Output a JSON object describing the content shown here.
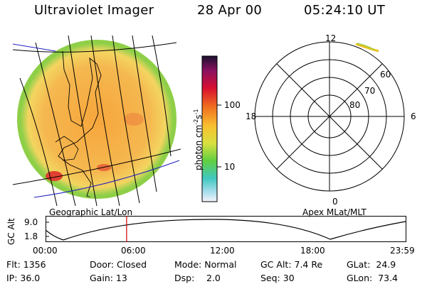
{
  "header": {
    "instrument": "Ultraviolet Imager",
    "date": "28 Apr 00",
    "time": "05:24:10 UT"
  },
  "colorbar": {
    "unit_label": "photon cm",
    "unit_sup1": "-2",
    "unit_mid": "s",
    "unit_sup2": "-1",
    "tick_100": "100",
    "tick_10": "10"
  },
  "polar_plot": {
    "mlt_12": "12",
    "mlt_18": "18",
    "mlt_6": "6",
    "mlt_0": "0",
    "lat_60": "60",
    "lat_70": "70",
    "lat_80": "80"
  },
  "panel_labels": {
    "left": "Geographic Lat/Lon",
    "right": "Apex MLat/MLT"
  },
  "altitude_plot": {
    "ylabel": "GC Alt",
    "ytick_high": "9.0",
    "ytick_low": "1.8",
    "x_ticks": [
      "00:00",
      "06:00",
      "12:00",
      "18:00",
      "23:59"
    ],
    "current_time_hours": 5.403
  },
  "info": {
    "flt": "Flt: 1356",
    "ip": "IP: 36.0",
    "door": "Door: Closed",
    "gain": "Gain: 13",
    "mode": "Mode: Normal",
    "dsp_label": "Dsp:",
    "dsp_value": "2.0",
    "gcalt": "GC Alt: 7.4 Re",
    "seq": "Seq: 30",
    "glat": "GLat:  24.9",
    "glon": "GLon:  73.4"
  },
  "colors": {
    "disk_fill": "#f3b24a",
    "disk_rim": "#9bd04a",
    "grid_line": "#000000",
    "blue_line": "#2020c0",
    "time_marker": "#cc0000"
  }
}
